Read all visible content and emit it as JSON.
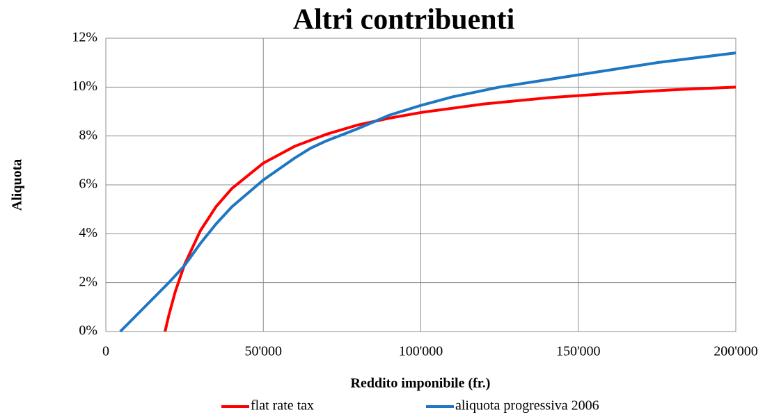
{
  "chart_data": {
    "type": "line",
    "title": "Altri contribuenti",
    "x_label": "Reddito imponibile (fr.)",
    "y_label": "Aliquota",
    "xlim": [
      0,
      200000
    ],
    "xticks": [
      0,
      {
        "value": 50000,
        "label": "50'000"
      },
      {
        "value": 100000,
        "label": "100'000"
      },
      {
        "value": 150000,
        "label": "150'000"
      },
      {
        "value": 200000,
        "label": "200'000"
      }
    ],
    "ylim": [
      0,
      12
    ],
    "yticks": [
      {
        "value": 0,
        "label": "0%"
      },
      {
        "value": 2,
        "label": "2%"
      },
      {
        "value": 4,
        "label": "4%"
      },
      {
        "value": 6,
        "label": "6%"
      },
      {
        "value": 8,
        "label": "8%"
      },
      {
        "value": 10,
        "label": "10%"
      },
      {
        "value": 12,
        "label": "12%"
      }
    ],
    "grid": true,
    "legend": "bottom",
    "series": [
      {
        "name": "flat rate tax",
        "color": "#ff0000",
        "x": [
          18800,
          20000,
          22000,
          25000,
          30000,
          35000,
          40000,
          50000,
          60000,
          70000,
          80000,
          90000,
          100000,
          120000,
          140000,
          160000,
          180000,
          200000
        ],
        "values": [
          0,
          0.66,
          1.61,
          2.74,
          4.12,
          5.11,
          5.85,
          6.89,
          7.58,
          8.07,
          8.45,
          8.73,
          8.96,
          9.31,
          9.56,
          9.74,
          9.89,
          10.0
        ]
      },
      {
        "name": "aliquota progressiva 2006",
        "color": "#1f77c4",
        "x": [
          4600,
          10000,
          20000,
          25000,
          30000,
          35000,
          40000,
          50000,
          60000,
          65000,
          70000,
          80000,
          90000,
          100000,
          110000,
          125000,
          150000,
          175000,
          200000
        ],
        "values": [
          0,
          0.7,
          2.0,
          2.7,
          3.6,
          4.4,
          5.1,
          6.2,
          7.1,
          7.5,
          7.8,
          8.3,
          8.85,
          9.25,
          9.6,
          10.0,
          10.5,
          11.0,
          11.4
        ]
      }
    ]
  }
}
